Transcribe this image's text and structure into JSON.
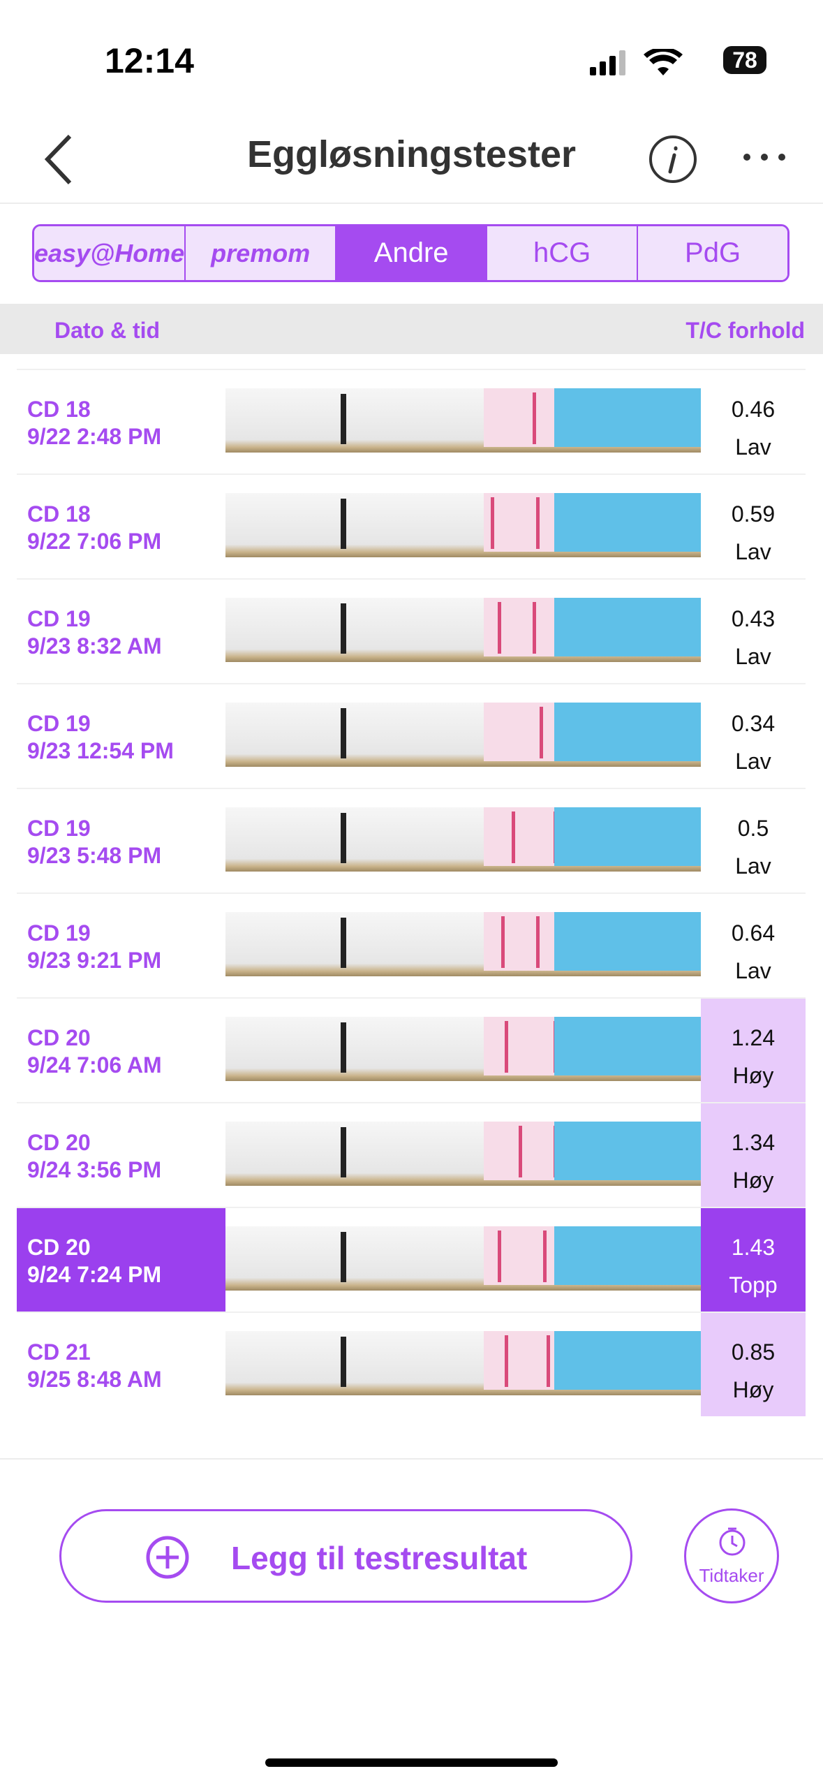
{
  "status_bar": {
    "time": "12:14",
    "battery": "78"
  },
  "header": {
    "title": "Eggløsningstester"
  },
  "tabs": [
    "easy@Home",
    "premom",
    "Andre",
    "hCG",
    "PdG"
  ],
  "table": {
    "columns": [
      "Dato & tid",
      "T/C forhold"
    ],
    "rows": [
      {
        "cycle_day": "CD 18",
        "datetime": "9/22 2:48 PM",
        "ratio": "0.46",
        "level": "Lav"
      },
      {
        "cycle_day": "CD 18",
        "datetime": "9/22 7:06 PM",
        "ratio": "0.59",
        "level": "Lav"
      },
      {
        "cycle_day": "CD 19",
        "datetime": "9/23 8:32 AM",
        "ratio": "0.43",
        "level": "Lav"
      },
      {
        "cycle_day": "CD 19",
        "datetime": "9/23 12:54 PM",
        "ratio": "0.34",
        "level": "Lav"
      },
      {
        "cycle_day": "CD 19",
        "datetime": "9/23 5:48 PM",
        "ratio": "0.5",
        "level": "Lav"
      },
      {
        "cycle_day": "CD 19",
        "datetime": "9/23 9:21 PM",
        "ratio": "0.64",
        "level": "Lav"
      },
      {
        "cycle_day": "CD 20",
        "datetime": "9/24 7:06 AM",
        "ratio": "1.24",
        "level": "Høy"
      },
      {
        "cycle_day": "CD 20",
        "datetime": "9/24 3:56 PM",
        "ratio": "1.34",
        "level": "Høy"
      },
      {
        "cycle_day": "CD 20",
        "datetime": "9/24 7:24 PM",
        "ratio": "1.43",
        "level": "Topp"
      },
      {
        "cycle_day": "CD 21",
        "datetime": "9/25 8:48 AM",
        "ratio": "0.85",
        "level": "Høy"
      }
    ]
  },
  "buttons": {
    "add": "Legg til testresultat",
    "timer": "Tidtaker"
  }
}
